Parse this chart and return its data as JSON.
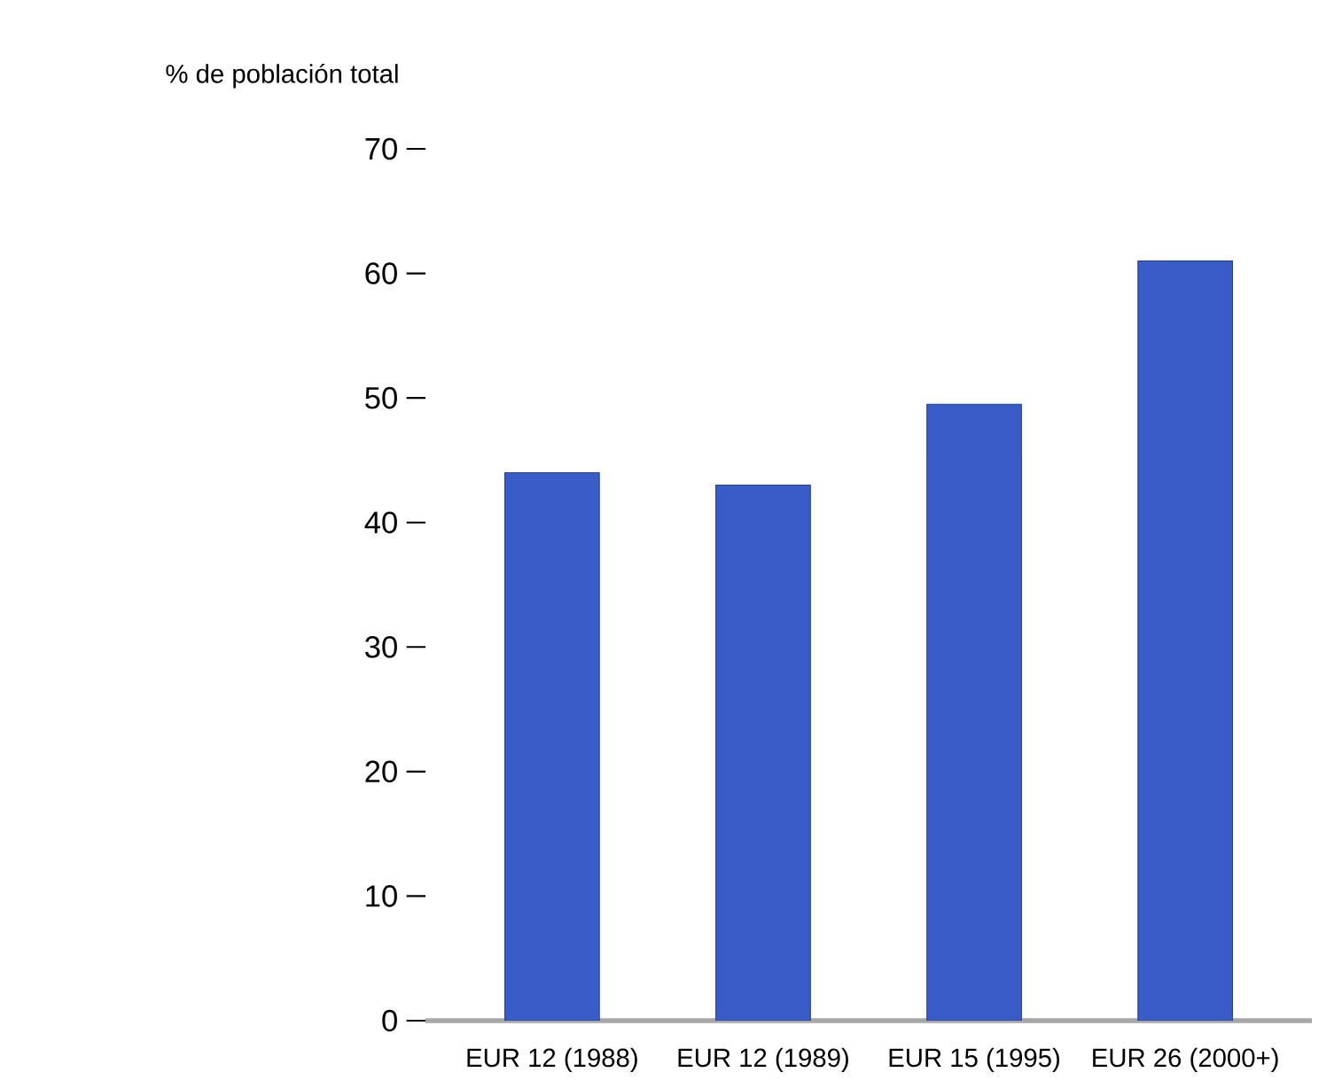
{
  "chart_data": {
    "type": "bar",
    "ylabel": "% de población total",
    "categories": [
      "EUR 12 (1988)",
      "EUR 12 (1989)",
      "EUR 15 (1995)",
      "EUR 26 (2000+)"
    ],
    "values": [
      44,
      43,
      49.5,
      61
    ],
    "color": "#3a5cc8",
    "ylim": [
      0,
      70
    ],
    "yticks": [
      0,
      10,
      20,
      30,
      40,
      50,
      60,
      70
    ],
    "grid": false
  }
}
